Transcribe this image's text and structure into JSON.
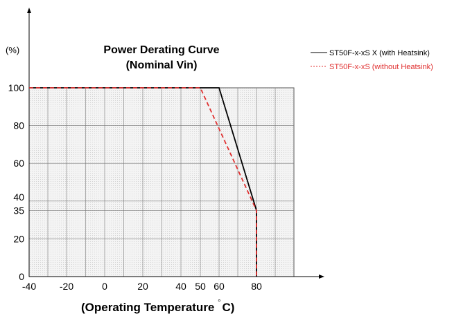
{
  "chart_data": {
    "type": "line",
    "title": "Power Derating Curve",
    "subtitle": "(Nominal Vin)",
    "xlabel": "(Operating Temperature °C)",
    "xlabel_main": "(Operating Temperature ",
    "xlabel_degree": "°",
    "xlabel_end": "C)",
    "ylabel": "(%)",
    "x_ticks": [
      "-40",
      "-20",
      "0",
      "20",
      "40",
      "50",
      "60",
      "80"
    ],
    "y_ticks": [
      "0",
      "20",
      "35",
      "40",
      "60",
      "80",
      "100"
    ],
    "xlim": [
      -40,
      80
    ],
    "ylim": [
      0,
      100
    ],
    "grid": true,
    "legend_position": "top-right",
    "series": [
      {
        "name": "ST50F-x-xS X (with Heatsink)",
        "color": "#000000",
        "style": "solid",
        "x": [
          -40,
          60,
          80,
          80
        ],
        "y": [
          100,
          100,
          35,
          0
        ]
      },
      {
        "name": "ST50F-x-xS (without Heatsink)",
        "color": "#e03030",
        "style": "dashed",
        "x": [
          -40,
          50,
          80,
          80
        ],
        "y": [
          100,
          100,
          35,
          0
        ]
      }
    ]
  }
}
